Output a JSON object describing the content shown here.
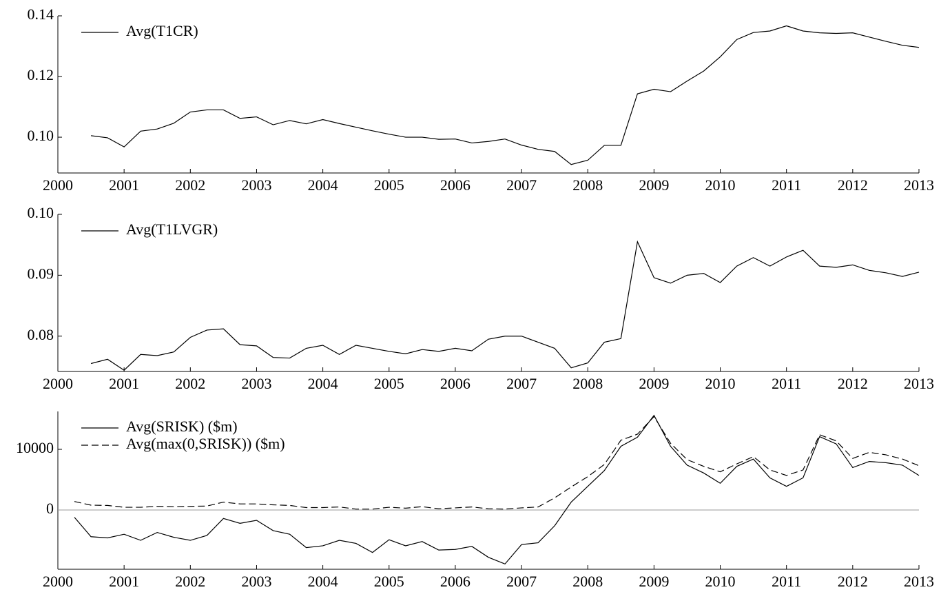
{
  "chart_data": [
    {
      "type": "line",
      "x": [
        2000.5,
        2000.75,
        2001,
        2001.25,
        2001.5,
        2001.75,
        2002,
        2002.25,
        2002.5,
        2002.75,
        2003,
        2003.25,
        2003.5,
        2003.75,
        2004,
        2004.25,
        2004.5,
        2004.75,
        2005,
        2005.25,
        2005.5,
        2005.75,
        2006,
        2006.25,
        2006.5,
        2006.75,
        2007,
        2007.25,
        2007.5,
        2007.75,
        2008,
        2008.25,
        2008.5,
        2008.75,
        2009,
        2009.25,
        2009.5,
        2009.75,
        2010,
        2010.25,
        2010.5,
        2010.75,
        2011,
        2011.25,
        2011.5,
        2011.75,
        2012,
        2012.25,
        2012.5,
        2012.75,
        2013
      ],
      "series": [
        {
          "name": "Avg(T1CR)",
          "color": "#000000",
          "linestyle": "solid",
          "values": [
            0.1005,
            0.0998,
            0.0968,
            0.102,
            0.1027,
            0.1046,
            0.1083,
            0.109,
            0.109,
            0.1062,
            0.1067,
            0.1041,
            0.1055,
            0.1044,
            0.1058,
            0.1045,
            0.1033,
            0.1021,
            0.101,
            0.1,
            0.1,
            0.0993,
            0.0994,
            0.0981,
            0.0986,
            0.0994,
            0.0974,
            0.096,
            0.0953,
            0.091,
            0.0924,
            0.0973,
            0.0973,
            0.1143,
            0.1158,
            0.115,
            0.1185,
            0.1218,
            0.1265,
            0.1322,
            0.1345,
            0.135,
            0.1367,
            0.135,
            0.1344,
            0.1342,
            0.1344,
            0.133,
            0.1316,
            0.1303,
            0.1296
          ]
        }
      ],
      "xlim": [
        2000,
        2013
      ],
      "xticks": [
        2000,
        2001,
        2002,
        2003,
        2004,
        2005,
        2006,
        2007,
        2008,
        2009,
        2010,
        2011,
        2012,
        2013
      ],
      "ylim": [
        0.0882,
        0.14
      ],
      "yticks": [
        {
          "value": 0.1,
          "label": "0.10"
        },
        0.12,
        0.14
      ],
      "legend": "upper left"
    },
    {
      "type": "line",
      "x": [
        2000.5,
        2000.75,
        2001,
        2001.25,
        2001.5,
        2001.75,
        2002,
        2002.25,
        2002.5,
        2002.75,
        2003,
        2003.25,
        2003.5,
        2003.75,
        2004,
        2004.25,
        2004.5,
        2004.75,
        2005,
        2005.25,
        2005.5,
        2005.75,
        2006,
        2006.25,
        2006.5,
        2006.75,
        2007,
        2007.25,
        2007.5,
        2007.75,
        2008,
        2008.25,
        2008.5,
        2008.75,
        2009,
        2009.25,
        2009.5,
        2009.75,
        2010,
        2010.25,
        2010.5,
        2010.75,
        2011,
        2011.25,
        2011.5,
        2011.75,
        2012,
        2012.25,
        2012.5,
        2012.75,
        2013
      ],
      "series": [
        {
          "name": "Avg(T1LVGR)",
          "color": "#000000",
          "linestyle": "solid",
          "values": [
            0.0755,
            0.0762,
            0.0744,
            0.077,
            0.0768,
            0.0774,
            0.0798,
            0.081,
            0.0812,
            0.0786,
            0.0784,
            0.0765,
            0.0764,
            0.078,
            0.0785,
            0.077,
            0.0785,
            0.078,
            0.0775,
            0.0771,
            0.0778,
            0.0775,
            0.078,
            0.0776,
            0.0795,
            0.08,
            0.08,
            0.079,
            0.078,
            0.0748,
            0.0756,
            0.079,
            0.0796,
            0.0955,
            0.0896,
            0.0887,
            0.09,
            0.0903,
            0.0888,
            0.0915,
            0.0929,
            0.0915,
            0.093,
            0.0941,
            0.0915,
            0.0913,
            0.0917,
            0.0908,
            0.0904,
            0.0898,
            0.0905
          ]
        }
      ],
      "xlim": [
        2000,
        2013
      ],
      "xticks": [
        2000,
        2001,
        2002,
        2003,
        2004,
        2005,
        2006,
        2007,
        2008,
        2009,
        2010,
        2011,
        2012,
        2013
      ],
      "ylim": [
        0.0742,
        0.1
      ],
      "yticks": [
        0.08,
        0.09,
        {
          "value": 0.1,
          "label": "0.10"
        }
      ],
      "legend": "upper left"
    },
    {
      "type": "line",
      "x": [
        2000.25,
        2000.5,
        2000.75,
        2001,
        2001.25,
        2001.5,
        2001.75,
        2002,
        2002.25,
        2002.5,
        2002.75,
        2003,
        2003.25,
        2003.5,
        2003.75,
        2004,
        2004.25,
        2004.5,
        2004.75,
        2005,
        2005.25,
        2005.5,
        2005.75,
        2006,
        2006.25,
        2006.5,
        2006.75,
        2007,
        2007.25,
        2007.5,
        2007.75,
        2008,
        2008.25,
        2008.5,
        2008.75,
        2009,
        2009.25,
        2009.5,
        2009.75,
        2010,
        2010.25,
        2010.5,
        2010.75,
        2011,
        2011.25,
        2011.5,
        2011.75,
        2012,
        2012.25,
        2012.5,
        2012.75,
        2013
      ],
      "series": [
        {
          "name": "Avg(SRISK) ($m)",
          "color": "#000000",
          "linestyle": "solid",
          "values": [
            -1200,
            -4400,
            -4600,
            -4000,
            -5000,
            -3700,
            -4500,
            -5000,
            -4200,
            -1400,
            -2200,
            -1700,
            -3400,
            -4000,
            -6200,
            -5900,
            -5000,
            -5500,
            -7000,
            -4900,
            -5900,
            -5200,
            -6600,
            -6500,
            -6000,
            -7800,
            -8900,
            -5700,
            -5400,
            -2600,
            1300,
            3900,
            6500,
            10500,
            12000,
            15600,
            10500,
            7400,
            6100,
            4400,
            7200,
            8400,
            5300,
            3900,
            5300,
            12100,
            10900,
            7000,
            8000,
            7800,
            7400,
            5700
          ]
        },
        {
          "name": "Avg(max(0,SRISK)) ($m)",
          "color": "#000000",
          "linestyle": "dashed",
          "values": [
            1400,
            800,
            750,
            450,
            450,
            600,
            550,
            600,
            650,
            1300,
            1000,
            1000,
            850,
            750,
            400,
            400,
            500,
            150,
            150,
            450,
            300,
            550,
            200,
            350,
            500,
            200,
            150,
            350,
            500,
            2000,
            3800,
            5500,
            7500,
            11500,
            12500,
            15400,
            11000,
            8300,
            7200,
            6300,
            7600,
            8800,
            6600,
            5700,
            6600,
            12400,
            11400,
            8500,
            9500,
            9100,
            8400,
            7300
          ]
        }
      ],
      "xlim": [
        2000,
        2013
      ],
      "xticks": [
        2000,
        2001,
        2002,
        2003,
        2004,
        2005,
        2006,
        2007,
        2008,
        2009,
        2010,
        2011,
        2012,
        2013
      ],
      "ylim": [
        -9770,
        16250
      ],
      "yticks": [
        0,
        10000
      ],
      "hlines": [
        0
      ],
      "legend": "upper left"
    }
  ]
}
